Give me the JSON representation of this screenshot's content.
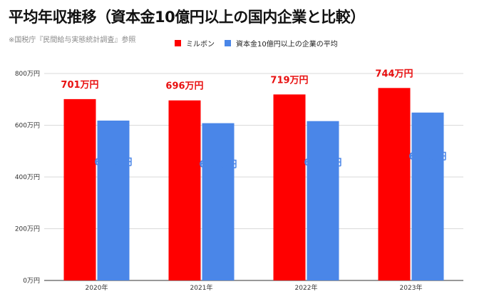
{
  "title": "平均年収推移（資本金10億円以上の国内企業と比較）",
  "subtitle": "※国税庁『民間給与実態統計調査』参照",
  "chart_data": {
    "type": "bar",
    "categories": [
      "2020年",
      "2021年",
      "2022年",
      "2023年"
    ],
    "series": [
      {
        "name": "ミルボン",
        "color": "#ff0000",
        "label_color": "#e81010",
        "values": [
          701,
          696,
          719,
          744
        ],
        "labels": [
          "701万円",
          "696万円",
          "719万円",
          "744万円"
        ]
      },
      {
        "name": "資本金10億円以上の企業の平均",
        "color": "#4a86e8",
        "label_color": "#4a86e8",
        "values": [
          618,
          608,
          616,
          649
        ],
        "labels": [
          "618万円",
          "608万円",
          "616万円",
          "649万円"
        ]
      }
    ],
    "ylim": [
      0,
      800
    ],
    "yticks": [
      0,
      200,
      400,
      600,
      800
    ],
    "ytick_labels": [
      "0万円",
      "200万円",
      "400万円",
      "600万円",
      "800万円"
    ],
    "grid": true,
    "legend": "top"
  }
}
